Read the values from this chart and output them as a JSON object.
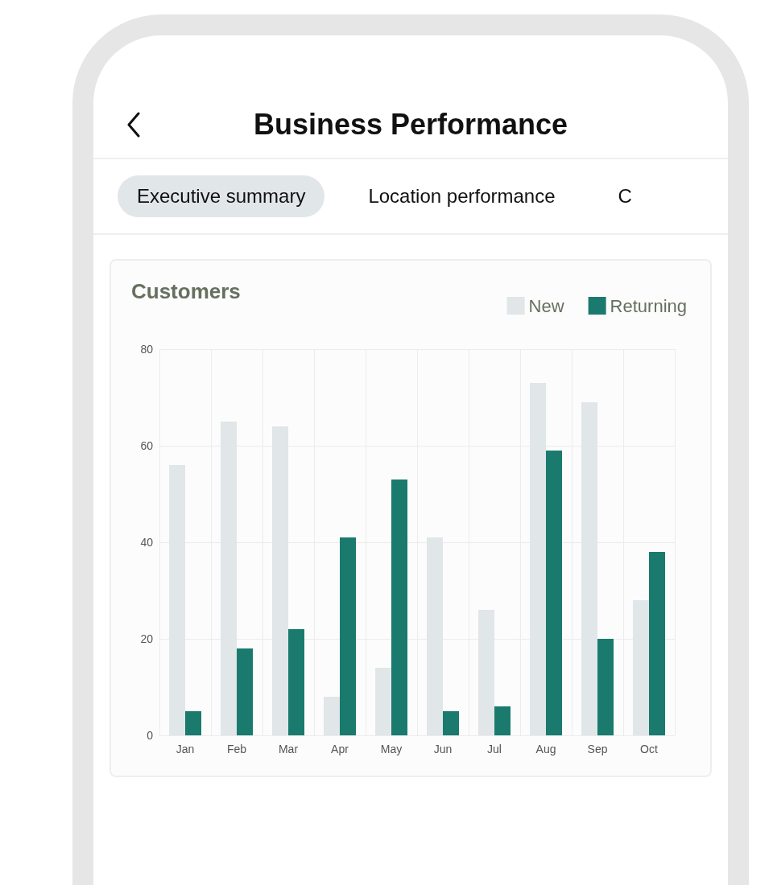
{
  "chart_data": {
    "type": "bar",
    "subtitle": "Business Performance",
    "title": "Customers",
    "annotations": [
      "Executive summary",
      "Location performance",
      "C"
    ],
    "categories": [
      "Jan",
      "Feb",
      "Mar",
      "Apr",
      "May",
      "Jun",
      "Jul",
      "Aug",
      "Sep",
      "Oct"
    ],
    "series": [
      {
        "name": "New",
        "color": "#e1e6e8",
        "values": [
          56,
          65,
          64,
          8,
          14,
          41,
          26,
          73,
          69,
          28
        ]
      },
      {
        "name": "Returning",
        "color": "#1a7a6e",
        "values": [
          5,
          18,
          22,
          41,
          53,
          5,
          6,
          59,
          20,
          38
        ]
      }
    ],
    "ylim": [
      0,
      80
    ],
    "yticks": [
      0,
      20,
      40,
      60,
      80
    ],
    "grid": true,
    "legend": "top right"
  }
}
